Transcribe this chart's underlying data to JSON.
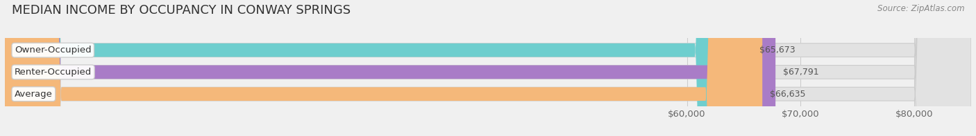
{
  "title": "MEDIAN INCOME BY OCCUPANCY IN CONWAY SPRINGS",
  "source": "Source: ZipAtlas.com",
  "categories": [
    "Owner-Occupied",
    "Renter-Occupied",
    "Average"
  ],
  "values": [
    65673,
    67791,
    66635
  ],
  "bar_colors": [
    "#6ecece",
    "#a97cc7",
    "#f5b87a"
  ],
  "value_labels": [
    "$65,673",
    "$67,791",
    "$66,635"
  ],
  "xmin": 0,
  "xmax": 85000,
  "xticks": [
    60000,
    70000,
    80000
  ],
  "xtick_labels": [
    "$60,000",
    "$70,000",
    "$80,000"
  ],
  "background_color": "#f0f0f0",
  "bar_bg_color": "#e2e2e2",
  "title_fontsize": 13,
  "label_fontsize": 9.5,
  "value_fontsize": 9,
  "source_fontsize": 8.5
}
